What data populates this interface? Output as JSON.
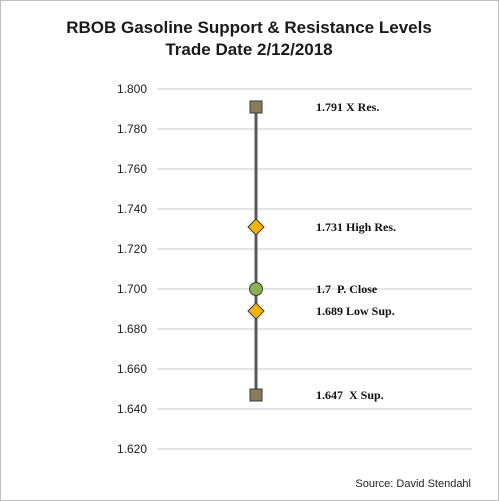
{
  "chart_data": {
    "type": "scatter",
    "title": "RBOB Gasoline Support & Resistance Levels",
    "subtitle": "Trade Date 2/12/2018",
    "ylim": [
      1.62,
      1.8
    ],
    "y_ticks": [
      "1.620",
      "1.640",
      "1.660",
      "1.680",
      "1.700",
      "1.720",
      "1.740",
      "1.760",
      "1.780",
      "1.800"
    ],
    "grid": true,
    "points": [
      {
        "value": 1.791,
        "label": "1.791 X Res.",
        "marker": "square",
        "color": "#8b7d5c"
      },
      {
        "value": 1.731,
        "label": "1.731 High Res.",
        "marker": "diamond",
        "color": "#f5b400"
      },
      {
        "value": 1.7,
        "label": "1.7  P. Close",
        "marker": "circle",
        "color": "#8cb050"
      },
      {
        "value": 1.689,
        "label": "1.689 Low Sup.",
        "marker": "diamond",
        "color": "#f5b400"
      },
      {
        "value": 1.647,
        "label": "1.647  X Sup.",
        "marker": "square",
        "color": "#8b7d5c"
      }
    ]
  },
  "source": "Source: David Stendahl"
}
